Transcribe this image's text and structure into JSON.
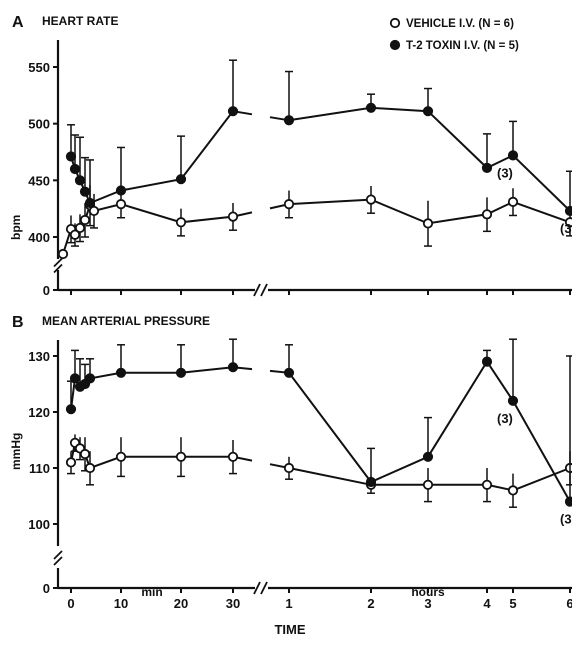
{
  "figure": {
    "xlabel": "TIME",
    "min_label": "min",
    "hours_label": "hours",
    "legend": [
      {
        "marker": "open",
        "label": "VEHICLE I.V. (N = 6)"
      },
      {
        "marker": "filled",
        "label": "T-2 TOXIN I.V. (N = 5)"
      }
    ],
    "colors": {
      "ink": "#111111",
      "background": "#ffffff"
    }
  },
  "chart_data": [
    {
      "type": "line",
      "panel": "A",
      "title": "HEART RATE",
      "ylabel": "bpm",
      "ylim": [
        380,
        570
      ],
      "yticks": [
        400,
        450,
        500,
        550
      ],
      "y_axis_break": true,
      "y_zero_label": "0",
      "x_axis_break_between": [
        "30",
        "1"
      ],
      "x_tick_labels": [],
      "x_ticks": [
        "0",
        "10",
        "20",
        "30",
        "1",
        "2",
        "3",
        "4",
        "5",
        "6"
      ],
      "series": [
        {
          "name": "VEHICLE I.V. (N = 6)",
          "marker": "open",
          "x": [
            "-1 min",
            "0 min",
            "1 min",
            "2 min",
            "3 min",
            "4 min",
            "5 min",
            "10 min",
            "20 min",
            "30 min",
            "1 h",
            "2 h",
            "3 h",
            "4 h",
            "5 h",
            "6 h"
          ],
          "values": [
            385,
            407,
            402,
            408,
            415,
            428,
            423,
            429,
            413,
            418,
            429,
            433,
            412,
            420,
            431,
            413
          ],
          "errors": [
            0,
            12,
            10,
            12,
            15,
            18,
            15,
            12,
            12,
            12,
            12,
            12,
            20,
            15,
            12,
            12
          ]
        },
        {
          "name": "T-2 TOXIN I.V. (N = 5)",
          "marker": "filled",
          "x": [
            "0 min",
            "1 min",
            "2 min",
            "3 min",
            "4 min",
            "10 min",
            "20 min",
            "30 min",
            "1 h",
            "2 h",
            "3 h",
            "4 h",
            "5 h",
            "6 h"
          ],
          "values": [
            471,
            460,
            450,
            440,
            430,
            441,
            451,
            511,
            503,
            514,
            511,
            461,
            472,
            423
          ],
          "errors": [
            28,
            30,
            38,
            30,
            38,
            38,
            38,
            45,
            43,
            12,
            20,
            30,
            30,
            35
          ]
        }
      ],
      "annotations": [
        {
          "label": "(3)",
          "at": "5 h"
        },
        {
          "label": "(3",
          "at": "6 h"
        }
      ]
    },
    {
      "type": "line",
      "panel": "B",
      "title": "MEAN ARTERIAL PRESSURE",
      "ylabel": "mmHg",
      "ylim": [
        95,
        134
      ],
      "yticks": [
        100,
        110,
        120,
        130
      ],
      "y_axis_break": true,
      "y_zero_label": "0",
      "x_axis_break_between": [
        "30",
        "1"
      ],
      "x_tick_labels": [
        "0",
        "10",
        "20",
        "30",
        "1",
        "2",
        "3",
        "4",
        "5",
        "6"
      ],
      "series": [
        {
          "name": "VEHICLE I.V. (N = 6)",
          "marker": "open",
          "x": [
            "0 min",
            "1 min",
            "2 min",
            "3 min",
            "4 min",
            "10 min",
            "20 min",
            "30 min",
            "1 h",
            "2 h",
            "3 h",
            "4 h",
            "5 h",
            "6 h"
          ],
          "values": [
            111,
            114.5,
            113.5,
            112.5,
            110,
            112,
            112,
            112,
            110,
            107,
            107,
            107,
            106,
            110
          ],
          "errors": [
            2,
            1.5,
            2,
            3,
            3,
            3.5,
            3.5,
            3,
            2,
            1.5,
            3,
            3,
            3,
            3
          ]
        },
        {
          "name": "T-2 TOXIN I.V. (N = 5)",
          "marker": "filled",
          "x": [
            "0 min",
            "1 min",
            "2 min",
            "3 min",
            "4 min",
            "10 min",
            "20 min",
            "30 min",
            "1 h",
            "2 h",
            "3 h",
            "4 h",
            "5 h",
            "6 h"
          ],
          "values": [
            120.5,
            126,
            124.5,
            125,
            126,
            127,
            127,
            128,
            127,
            107.5,
            112,
            129,
            122,
            104
          ],
          "errors": [
            5,
            5,
            5,
            3.5,
            3.5,
            5,
            5,
            5,
            5,
            6,
            7,
            2,
            11,
            26
          ]
        }
      ],
      "annotations": [
        {
          "label": "(3)",
          "at": "5 h"
        },
        {
          "label": "(3",
          "at": "6 h"
        }
      ]
    }
  ]
}
